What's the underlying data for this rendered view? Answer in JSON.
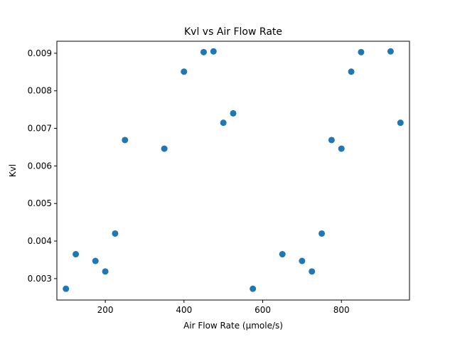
{
  "chart_data": {
    "type": "scatter",
    "title": "Kvl vs Air Flow Rate",
    "xlabel": "Air Flow Rate (μmole/s)",
    "ylabel": "Kvl",
    "xlim": [
      77,
      973
    ],
    "ylim": [
      0.00243,
      0.00932
    ],
    "xticks": [
      200,
      400,
      600,
      800
    ],
    "xtick_labels": [
      "200",
      "400",
      "600",
      "800"
    ],
    "yticks": [
      0.003,
      0.004,
      0.005,
      0.006,
      0.007,
      0.008,
      0.009
    ],
    "ytick_labels": [
      "0.003",
      "0.004",
      "0.005",
      "0.006",
      "0.007",
      "0.008",
      "0.009"
    ],
    "grid": false,
    "marker_color": "#1f77b4",
    "series": [
      {
        "x": [
          100,
          125,
          175,
          200,
          225,
          250,
          350,
          400,
          450,
          475,
          500,
          525,
          575,
          650,
          700,
          725,
          750,
          775,
          800,
          825,
          850,
          925,
          950
        ],
        "y": [
          0.00273,
          0.00365,
          0.00347,
          0.00319,
          0.0042,
          0.00669,
          0.00646,
          0.00851,
          0.00903,
          0.00905,
          0.00715,
          0.0074,
          0.00273,
          0.00365,
          0.00347,
          0.00319,
          0.0042,
          0.00669,
          0.00646,
          0.00851,
          0.00903,
          0.00905,
          0.00715
        ]
      }
    ]
  }
}
